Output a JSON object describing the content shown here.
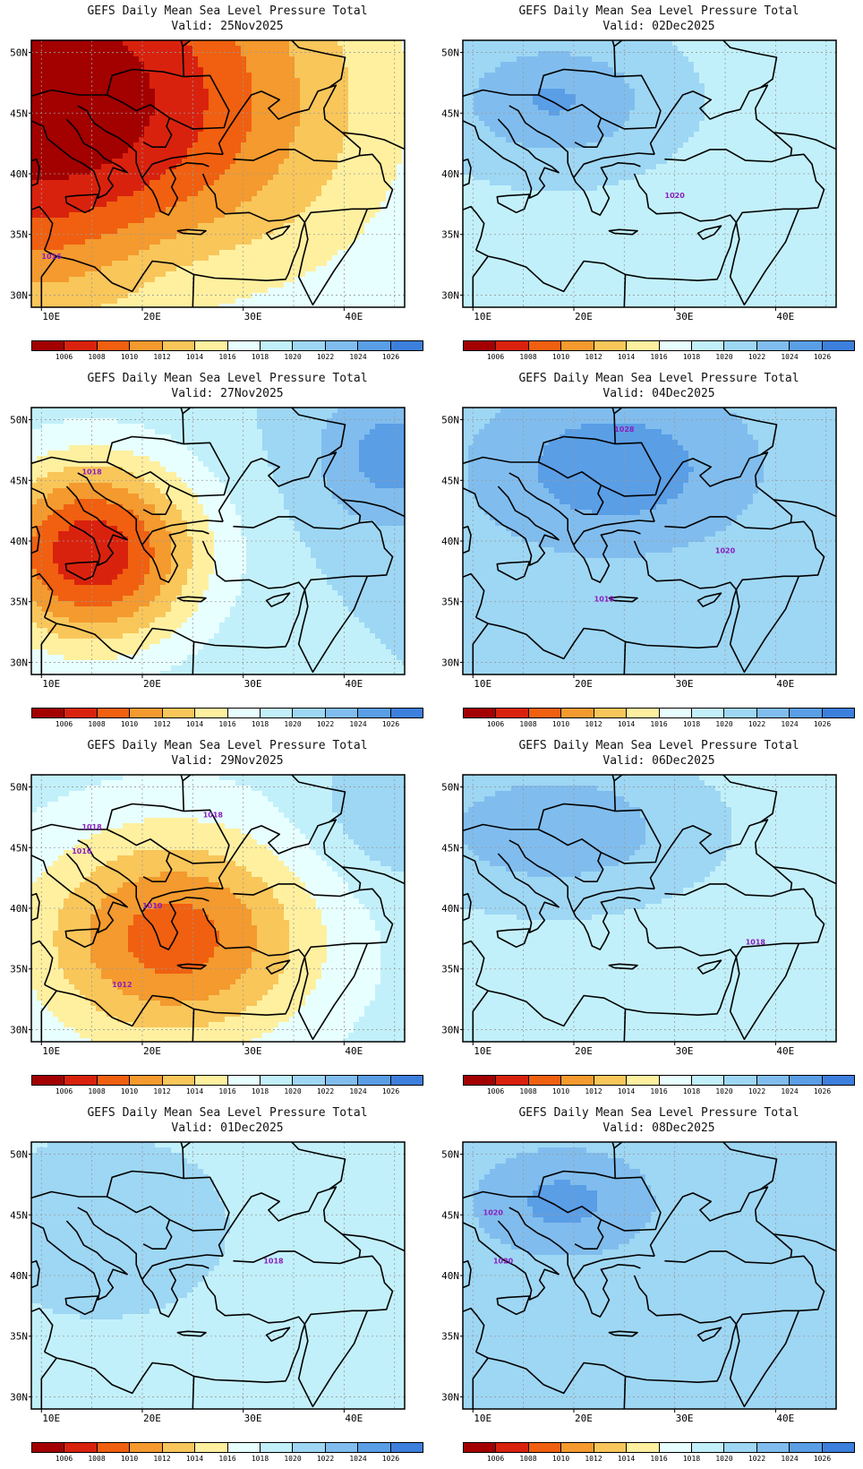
{
  "figure_title": "GEFS Daily Mean Sea Level Pressure Total",
  "colorbar": {
    "labels": [
      "1006",
      "1008",
      "1010",
      "1012",
      "1014",
      "1016",
      "1018",
      "1020",
      "1022",
      "1024",
      "1026"
    ],
    "colors": [
      "#a30000",
      "#d9220e",
      "#f06010",
      "#f49a2e",
      "#f9c65a",
      "#fff0a0",
      "#e8ffff",
      "#c2f0fa",
      "#9ed7f4",
      "#80bdee",
      "#5a9ee6",
      "#3d7fdc"
    ]
  },
  "axes": {
    "lon_ticks": [
      "10E",
      "20E",
      "30E",
      "40E"
    ],
    "lat_ticks": [
      "50N",
      "45N",
      "40N",
      "35N",
      "30N"
    ]
  },
  "contour_color": "#9a2fd6",
  "panels": [
    {
      "title": "GEFS Daily Mean Sea Level Pressure Total",
      "valid": "Valid: 25Nov2025",
      "low": {
        "lon": 10,
        "lat": 46,
        "min": 1004,
        "rx": 30,
        "ry": 18
      },
      "background": 1019.5,
      "highs": [
        {
          "lon": 24,
          "lat": 32,
          "max": 1021,
          "rx": 10,
          "ry": 6
        }
      ],
      "contour_labels": [
        {
          "text": "1016",
          "lon": 11,
          "lat": 33
        }
      ]
    },
    {
      "title": "GEFS Daily Mean Sea Level Pressure Total",
      "valid": "Valid: 02Dec2025",
      "low": null,
      "background": 1019.5,
      "highs": [
        {
          "lon": 18,
          "lat": 46,
          "max": 1024.2,
          "rx": 10,
          "ry": 5
        }
      ],
      "contour_labels": [
        {
          "text": "1020",
          "lon": 30,
          "lat": 38
        }
      ]
    },
    {
      "title": "GEFS Daily Mean Sea Level Pressure Total",
      "valid": "Valid: 27Nov2025",
      "low": {
        "lon": 15,
        "lat": 39,
        "min": 1006.5,
        "rx": 11,
        "ry": 8
      },
      "background": 1020,
      "highs": [
        {
          "lon": 45,
          "lat": 47,
          "max": 1025,
          "rx": 8,
          "ry": 6
        }
      ],
      "contour_labels": [
        {
          "text": "1018",
          "lon": 15,
          "lat": 45.5
        }
      ]
    },
    {
      "title": "GEFS Daily Mean Sea Level Pressure Total",
      "valid": "Valid: 04Dec2025",
      "low": null,
      "background": 1021,
      "highs": [
        {
          "lon": 24,
          "lat": 46,
          "max": 1025.5,
          "rx": 12,
          "ry": 6
        }
      ],
      "contour_labels": [
        {
          "text": "1028",
          "lon": 25,
          "lat": 49
        },
        {
          "text": "1020",
          "lon": 35,
          "lat": 39
        },
        {
          "text": "1018",
          "lon": 23,
          "lat": 35
        }
      ]
    },
    {
      "title": "GEFS Daily Mean Sea Level Pressure Total",
      "valid": "Valid: 29Nov2025",
      "low": {
        "lon": 23,
        "lat": 37.5,
        "min": 1009,
        "rx": 14,
        "ry": 9
      },
      "background": 1019,
      "highs": [
        {
          "lon": 45,
          "lat": 48,
          "max": 1022,
          "rx": 8,
          "ry": 6
        }
      ],
      "contour_labels": [
        {
          "text": "1018",
          "lon": 15,
          "lat": 46.5
        },
        {
          "text": "1018",
          "lon": 27,
          "lat": 47.5
        },
        {
          "text": "1016",
          "lon": 14,
          "lat": 44.5
        },
        {
          "text": "1010",
          "lon": 21,
          "lat": 40
        },
        {
          "text": "1012",
          "lon": 18,
          "lat": 33.5
        }
      ]
    },
    {
      "title": "GEFS Daily Mean Sea Level Pressure Total",
      "valid": "Valid: 06Dec2025",
      "low": null,
      "background": 1019.5,
      "highs": [
        {
          "lon": 18,
          "lat": 46.5,
          "max": 1024,
          "rx": 12,
          "ry": 5
        }
      ],
      "contour_labels": [
        {
          "text": "1018",
          "lon": 38,
          "lat": 37
        }
      ]
    },
    {
      "title": "GEFS Daily Mean Sea Level Pressure Total",
      "valid": "Valid: 01Dec2025",
      "low": null,
      "background": 1019.6,
      "highs": [
        {
          "lon": 16,
          "lat": 44,
          "max": 1021.5,
          "rx": 10,
          "ry": 6
        }
      ],
      "contour_labels": [
        {
          "text": "1018",
          "lon": 33,
          "lat": 41
        }
      ]
    },
    {
      "title": "GEFS Daily Mean Sea Level Pressure Total",
      "valid": "Valid: 08Dec2025",
      "low": null,
      "background": 1020,
      "highs": [
        {
          "lon": 19,
          "lat": 46,
          "max": 1024.5,
          "rx": 10,
          "ry": 5
        }
      ],
      "contour_labels": [
        {
          "text": "1020",
          "lon": 12,
          "lat": 45
        },
        {
          "text": "1020",
          "lon": 13,
          "lat": 41
        }
      ]
    }
  ]
}
